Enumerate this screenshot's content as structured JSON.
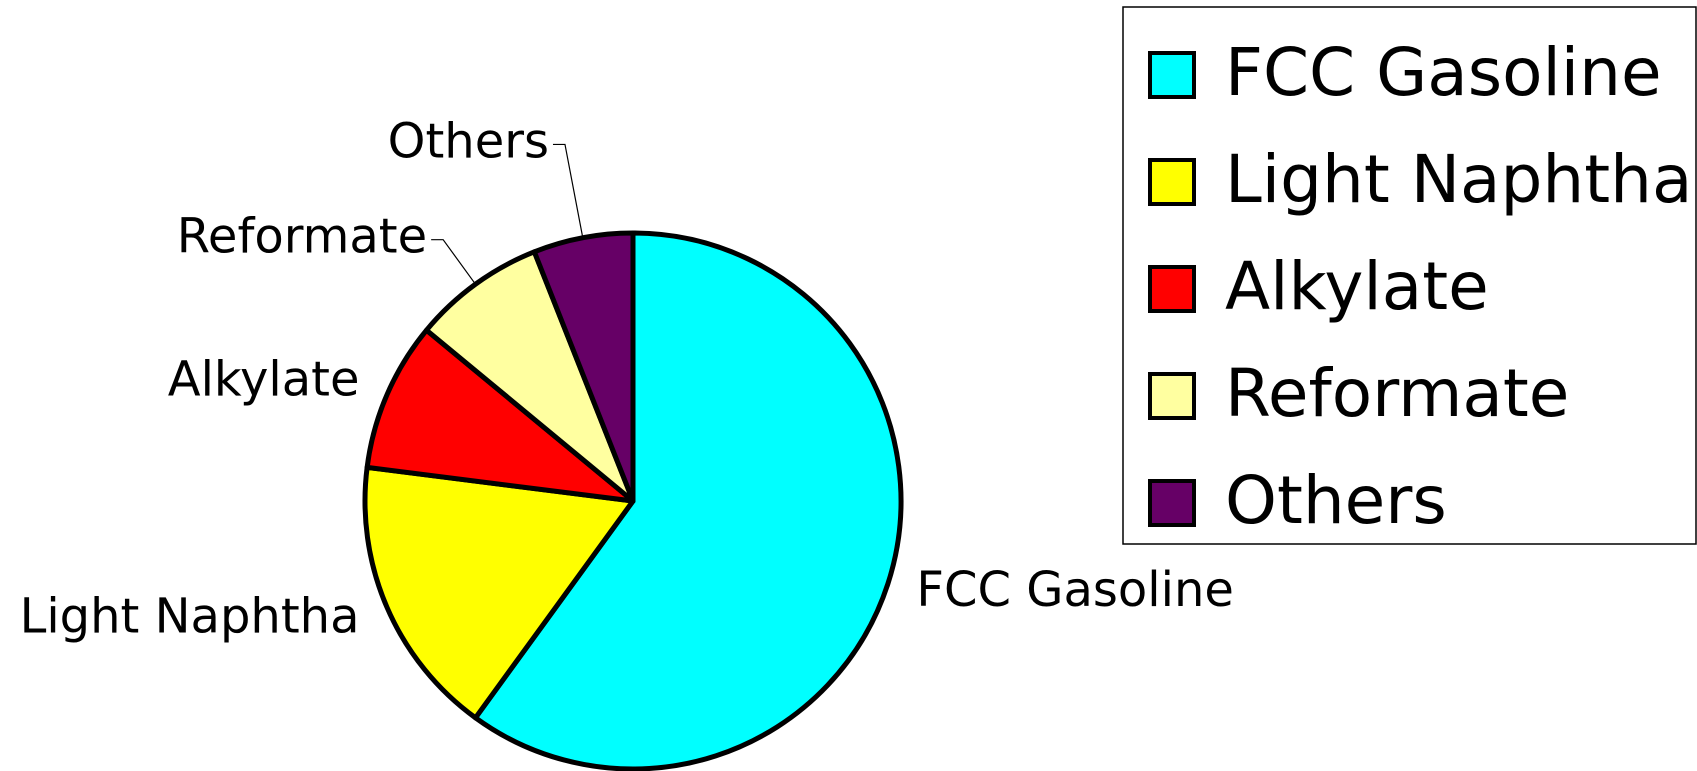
{
  "chart_data": {
    "type": "pie",
    "categories": [
      "FCC Gasoline",
      "Light Naphtha",
      "Alkylate",
      "Reformate",
      "Others"
    ],
    "values": [
      60,
      17,
      9,
      8,
      6
    ],
    "colors": [
      "#00ffff",
      "#ffff00",
      "#ff0000",
      "#ffffa0",
      "#660066"
    ],
    "legend": "right"
  }
}
